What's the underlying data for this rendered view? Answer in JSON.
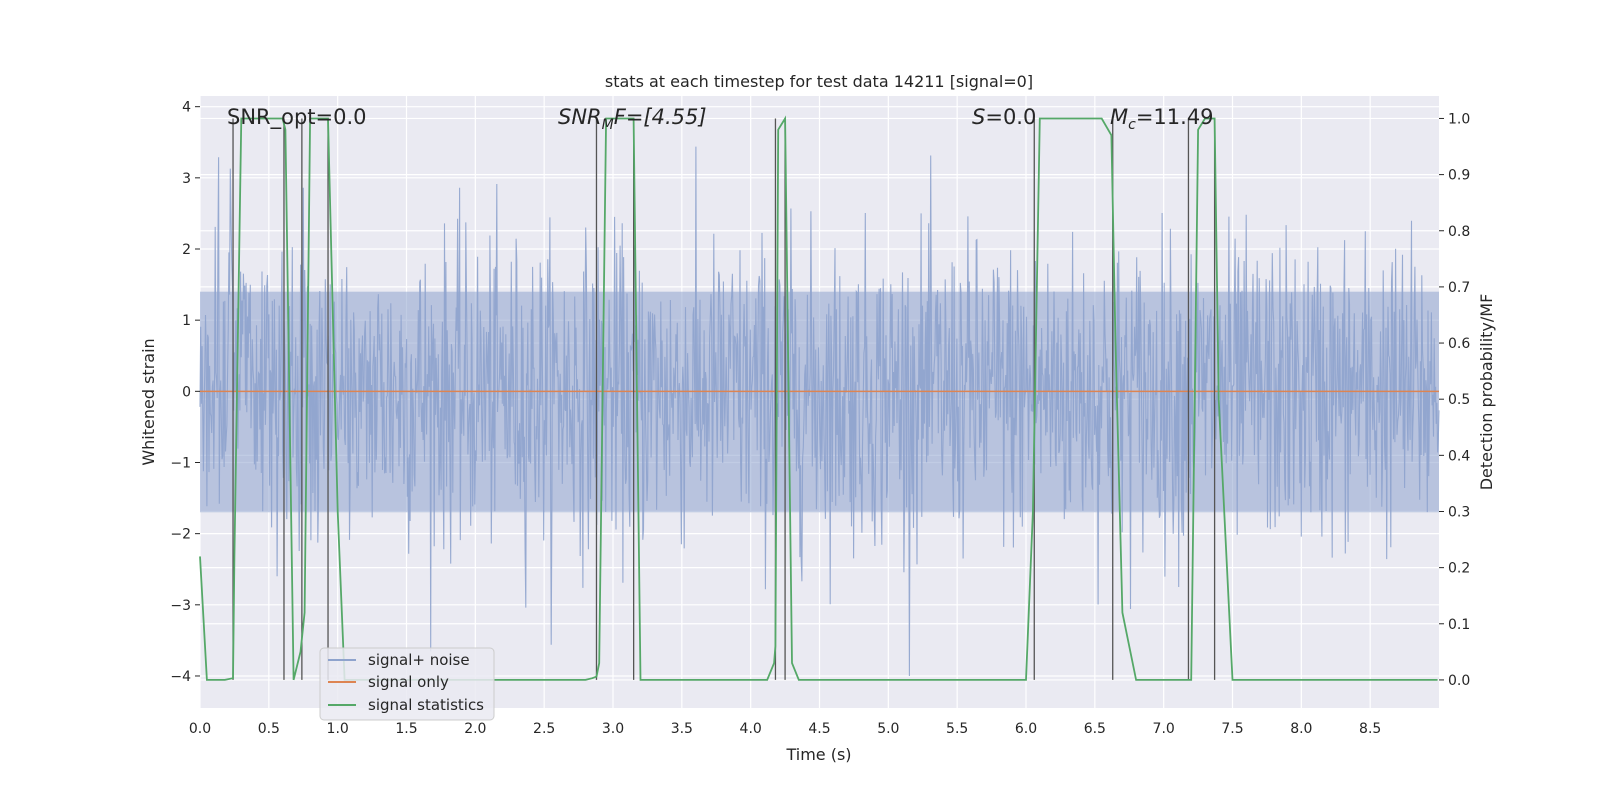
{
  "chart_data": {
    "type": "line",
    "title": "stats at each timestep for test data 14211 [signal=0]",
    "xlabel": "Time (s)",
    "ylabel": "Whitened strain",
    "y2label": "Detection probability/MF",
    "xlim": [
      0,
      9.0
    ],
    "ylim": [
      -4.45,
      4.15
    ],
    "y2lim": [
      -0.05,
      1.04
    ],
    "xticks": [
      0.0,
      0.5,
      1.0,
      1.5,
      2.0,
      2.5,
      3.0,
      3.5,
      4.0,
      4.5,
      5.0,
      5.5,
      6.0,
      6.5,
      7.0,
      7.5,
      8.0,
      8.5
    ],
    "xtick_labels": [
      "0.0",
      "0.5",
      "1.0",
      "1.5",
      "2.0",
      "2.5",
      "3.0",
      "3.5",
      "4.0",
      "4.5",
      "5.0",
      "5.5",
      "6.0",
      "6.5",
      "7.0",
      "7.5",
      "8.0",
      "8.5"
    ],
    "yticks": [
      -4,
      -3,
      -2,
      -1,
      0,
      1,
      2,
      3,
      4
    ],
    "ytick_labels": [
      "−4",
      "−3",
      "−2",
      "−1",
      "0",
      "1",
      "2",
      "3",
      "4"
    ],
    "y2ticks": [
      0.0,
      0.1,
      0.2,
      0.3,
      0.4,
      0.5,
      0.6,
      0.7,
      0.8,
      0.9,
      1.0
    ],
    "y2tick_labels": [
      "0.0",
      "0.1",
      "0.2",
      "0.3",
      "0.4",
      "0.5",
      "0.6",
      "0.7",
      "0.8",
      "0.9",
      "1.0"
    ],
    "grid": true,
    "legend_position": "lower-left",
    "annotations": {
      "snr_opt": "SNR_opt=0.0",
      "snr_mf_main": "SNR",
      "snr_mf_sub": "M",
      "snr_mf_rest": "F=[4.55]",
      "s_main": "S",
      "s_rest": "=0.0",
      "mc_main": "M",
      "mc_sub": "c",
      "mc_rest": "=11.49"
    },
    "series": [
      {
        "name": "signal+ noise",
        "color": "#8ea3cd",
        "axis": "left",
        "description_values": {
          "band_min": -1.7,
          "band_max": 1.4,
          "spike_min": -4.0,
          "spike_max": 3.75
        }
      },
      {
        "name": "signal only",
        "color": "#dd8452",
        "axis": "left",
        "x": [
          0.0,
          9.0
        ],
        "y": [
          0.0,
          0.0
        ]
      },
      {
        "name": "signal statistics",
        "color": "#55a868",
        "axis": "right",
        "x": [
          0.0,
          0.05,
          0.18,
          0.24,
          0.25,
          0.3,
          0.6,
          0.62,
          0.68,
          0.73,
          0.76,
          0.8,
          0.93,
          1.0,
          1.05,
          2.8,
          2.85,
          2.88,
          2.9,
          2.95,
          3.15,
          3.2,
          3.25,
          4.12,
          4.17,
          4.18,
          4.2,
          4.25,
          4.3,
          4.35,
          6.0,
          6.05,
          6.1,
          6.15,
          6.55,
          6.62,
          6.65,
          6.7,
          6.8,
          7.18,
          7.2,
          7.25,
          7.3,
          7.37,
          7.4,
          7.5,
          8.99
        ],
        "y": [
          0.22,
          0.0,
          0.0,
          0.003,
          0.22,
          1.0,
          1.0,
          0.98,
          0.0,
          0.05,
          0.12,
          1.0,
          1.0,
          0.3,
          0.0,
          0.0,
          0.003,
          0.006,
          0.03,
          1.0,
          1.0,
          0.0,
          0.0,
          0.0,
          0.03,
          0.06,
          0.98,
          1.0,
          0.03,
          0.0,
          0.0,
          0.3,
          1.0,
          1.0,
          1.0,
          0.97,
          0.6,
          0.12,
          0.0,
          0.0,
          0.0,
          0.98,
          1.0,
          1.0,
          0.5,
          0.0,
          0.0
        ]
      }
    ],
    "event_lines_x": [
      0.24,
      0.61,
      0.74,
      0.93,
      2.88,
      3.15,
      4.18,
      4.25,
      6.06,
      6.63,
      7.18,
      7.37
    ]
  }
}
